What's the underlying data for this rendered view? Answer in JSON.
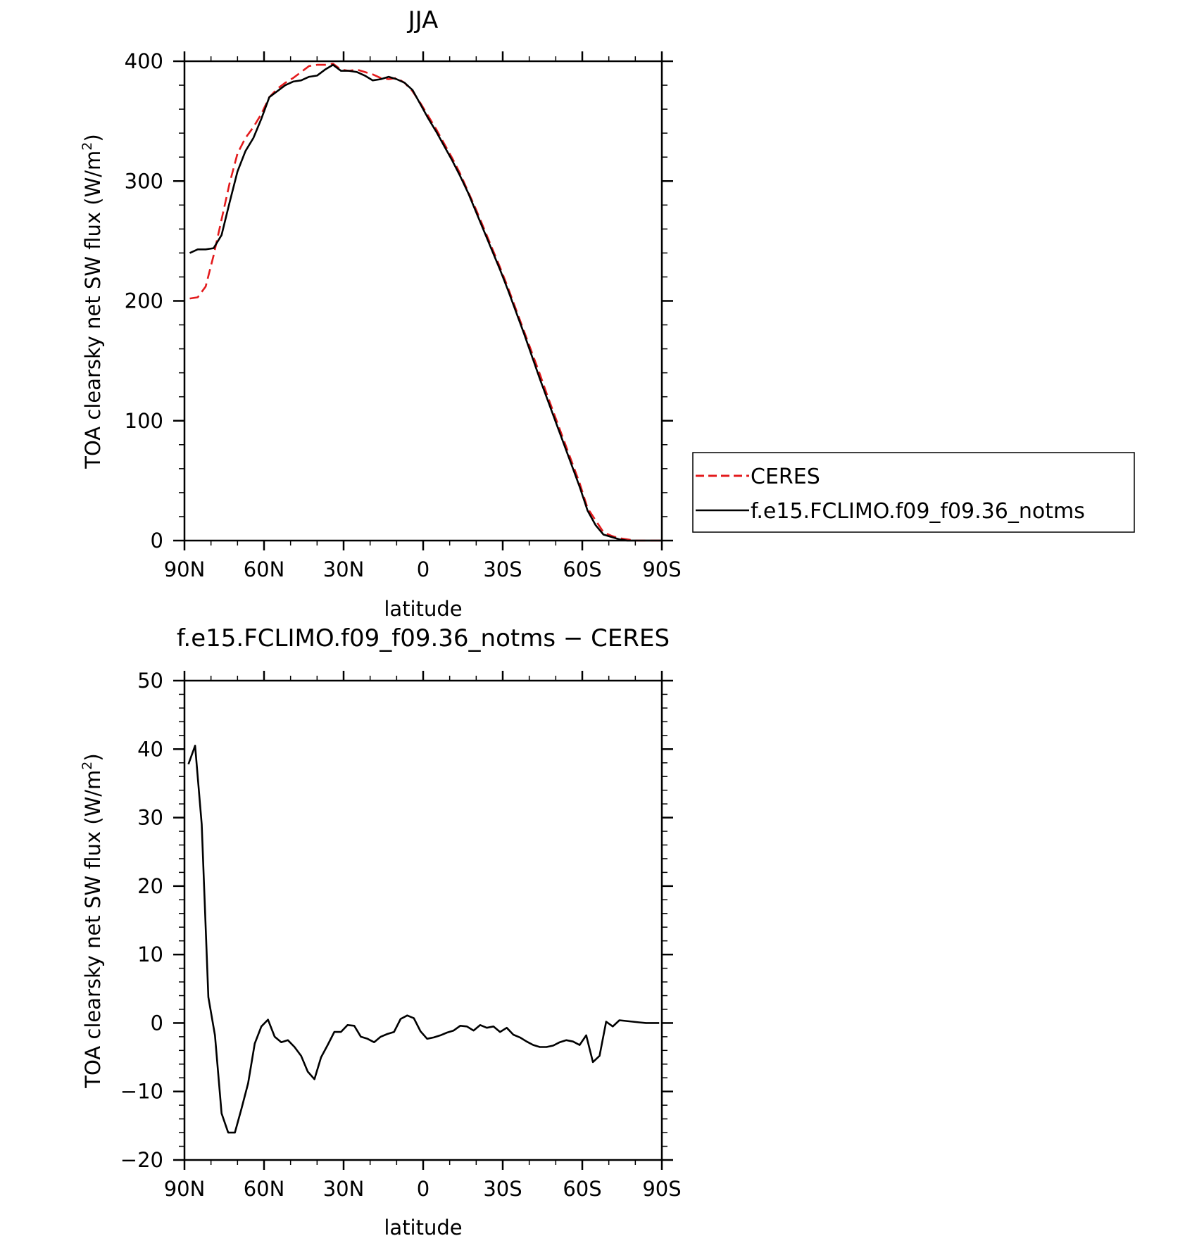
{
  "chart_data": [
    {
      "type": "line",
      "title": "JJA",
      "xlabel": "latitude",
      "ylabel": "TOA clearsky net SW flux (W/m",
      "ylabel_sup": "2",
      "ylabel_end": ")",
      "xlim": [
        90,
        -90
      ],
      "ylim": [
        0,
        400
      ],
      "x_ticks": [
        90,
        60,
        30,
        0,
        -30,
        -60,
        -90
      ],
      "x_tick_labels": [
        "90N",
        "60N",
        "30N",
        "0",
        "30S",
        "60S",
        "90S"
      ],
      "y_ticks": [
        0,
        100,
        200,
        300,
        400
      ],
      "y_tick_labels": [
        "0",
        "100",
        "200",
        "300",
        "400"
      ],
      "grid": false,
      "legend_position": "right",
      "series": [
        {
          "name": "CERES",
          "color": "#e31a1c",
          "dash": "dashed",
          "points": [
            [
              88,
              202
            ],
            [
              85,
              203
            ],
            [
              82,
              212
            ],
            [
              79,
              238
            ],
            [
              76,
              268
            ],
            [
              73,
              298
            ],
            [
              70,
              323
            ],
            [
              67,
              336
            ],
            [
              64,
              345
            ],
            [
              61,
              356
            ],
            [
              58,
              370
            ],
            [
              55,
              377
            ],
            [
              52,
              382
            ],
            [
              49,
              386
            ],
            [
              46,
              391
            ],
            [
              43,
              396
            ],
            [
              40,
              397
            ],
            [
              37,
              397
            ],
            [
              34,
              398
            ],
            [
              31,
              393
            ],
            [
              28,
              392
            ],
            [
              25,
              393
            ],
            [
              22,
              391
            ],
            [
              19,
              389
            ],
            [
              16,
              386
            ],
            [
              13,
              385
            ],
            [
              10,
              386
            ],
            [
              7,
              382
            ],
            [
              4,
              375
            ],
            [
              1,
              365
            ],
            [
              -2,
              354
            ],
            [
              -5,
              343
            ],
            [
              -8,
              331
            ],
            [
              -11,
              319
            ],
            [
              -14,
              306
            ],
            [
              -17,
              291
            ],
            [
              -20,
              276
            ],
            [
              -23,
              260
            ],
            [
              -26,
              244
            ],
            [
              -29,
              228
            ],
            [
              -32,
              211
            ],
            [
              -35,
              193
            ],
            [
              -38,
              175
            ],
            [
              -41,
              157
            ],
            [
              -44,
              139
            ],
            [
              -47,
              120
            ],
            [
              -50,
              102
            ],
            [
              -53,
              84
            ],
            [
              -56,
              66
            ],
            [
              -59,
              48
            ],
            [
              -62,
              27
            ],
            [
              -65,
              17
            ],
            [
              -68,
              7
            ],
            [
              -71,
              4
            ],
            [
              -74,
              2
            ],
            [
              -77,
              1
            ],
            [
              -80,
              0
            ],
            [
              -85,
              0
            ],
            [
              -90,
              0
            ]
          ]
        },
        {
          "name": "f.e15.FCLIMO.f09_f09.36_notms",
          "color": "#000000",
          "dash": "solid",
          "points": [
            [
              88,
              240
            ],
            [
              85,
              243
            ],
            [
              82,
              243
            ],
            [
              79,
              244
            ],
            [
              76,
              255
            ],
            [
              73,
              282
            ],
            [
              70,
              308
            ],
            [
              67,
              325
            ],
            [
              64,
              336
            ],
            [
              61,
              352
            ],
            [
              58,
              370
            ],
            [
              55,
              375
            ],
            [
              52,
              380
            ],
            [
              49,
              383
            ],
            [
              46,
              384
            ],
            [
              43,
              387
            ],
            [
              40,
              388
            ],
            [
              37,
              393
            ],
            [
              34,
              397
            ],
            [
              31,
              392
            ],
            [
              28,
              392
            ],
            [
              25,
              391
            ],
            [
              22,
              388
            ],
            [
              19,
              384
            ],
            [
              16,
              385
            ],
            [
              13,
              387
            ],
            [
              10,
              385
            ],
            [
              7,
              382
            ],
            [
              4,
              376
            ],
            [
              1,
              364
            ],
            [
              -2,
              352
            ],
            [
              -5,
              341
            ],
            [
              -8,
              329
            ],
            [
              -11,
              317
            ],
            [
              -14,
              304
            ],
            [
              -17,
              290
            ],
            [
              -20,
              274
            ],
            [
              -23,
              258
            ],
            [
              -26,
              242
            ],
            [
              -29,
              226
            ],
            [
              -32,
              209
            ],
            [
              -35,
              191
            ],
            [
              -38,
              173
            ],
            [
              -41,
              154
            ],
            [
              -44,
              135
            ],
            [
              -47,
              117
            ],
            [
              -50,
              99
            ],
            [
              -53,
              81
            ],
            [
              -56,
              63
            ],
            [
              -59,
              45
            ],
            [
              -62,
              25
            ],
            [
              -65,
              13
            ],
            [
              -68,
              5
            ],
            [
              -71,
              3
            ],
            [
              -74,
              1
            ],
            [
              -77,
              0
            ],
            [
              -80,
              0
            ],
            [
              -85,
              0
            ],
            [
              -90,
              0
            ]
          ]
        }
      ]
    },
    {
      "type": "line",
      "title": "f.e15.FCLIMO.f09_f09.36_notms − CERES",
      "xlabel": "latitude",
      "ylabel": "TOA clearsky net SW flux (W/m",
      "ylabel_sup": "2",
      "ylabel_end": ")",
      "xlim": [
        90,
        -90
      ],
      "ylim": [
        -20,
        50
      ],
      "x_ticks": [
        90,
        60,
        30,
        0,
        -30,
        -60,
        -90
      ],
      "x_tick_labels": [
        "90N",
        "60N",
        "30N",
        "0",
        "30S",
        "60S",
        "90S"
      ],
      "y_ticks": [
        -20,
        -10,
        0,
        10,
        20,
        30,
        40,
        50
      ],
      "y_tick_labels": [
        "−20",
        "−10",
        "0",
        "10",
        "20",
        "30",
        "40",
        "50"
      ],
      "grid": false,
      "series": [
        {
          "color": "#000000",
          "dash": "solid",
          "points": [
            [
              88.5,
              37.8
            ],
            [
              86,
              40.5
            ],
            [
              83.5,
              29
            ],
            [
              81,
              3.8
            ],
            [
              78.5,
              -1.8
            ],
            [
              76,
              -13.2
            ],
            [
              73.5,
              -16
            ],
            [
              71,
              -16
            ],
            [
              68.5,
              -12.5
            ],
            [
              66,
              -8.8
            ],
            [
              63.5,
              -3
            ],
            [
              61,
              -0.5
            ],
            [
              58.5,
              0.5
            ],
            [
              56,
              -2
            ],
            [
              53.5,
              -2.8
            ],
            [
              51,
              -2.5
            ],
            [
              48.5,
              -3.5
            ],
            [
              46,
              -4.8
            ],
            [
              43.5,
              -7.1
            ],
            [
              41,
              -8.2
            ],
            [
              38.5,
              -5
            ],
            [
              36,
              -3.2
            ],
            [
              33.5,
              -1.3
            ],
            [
              31,
              -1.3
            ],
            [
              28.5,
              -0.3
            ],
            [
              26,
              -0.4
            ],
            [
              23.5,
              -2
            ],
            [
              21,
              -2.3
            ],
            [
              18.5,
              -2.8
            ],
            [
              16,
              -2
            ],
            [
              13.5,
              -1.6
            ],
            [
              11,
              -1.3
            ],
            [
              8.5,
              0.6
            ],
            [
              6,
              1.1
            ],
            [
              3.5,
              0.7
            ],
            [
              1,
              -1.2
            ],
            [
              -1.5,
              -2.3
            ],
            [
              -4,
              -2.1
            ],
            [
              -6.5,
              -1.8
            ],
            [
              -9,
              -1.4
            ],
            [
              -11.5,
              -1.1
            ],
            [
              -14,
              -0.4
            ],
            [
              -16.5,
              -0.5
            ],
            [
              -19,
              -1.1
            ],
            [
              -21.5,
              -0.3
            ],
            [
              -24,
              -0.7
            ],
            [
              -26.5,
              -0.5
            ],
            [
              -29,
              -1.3
            ],
            [
              -31.5,
              -0.7
            ],
            [
              -34,
              -1.7
            ],
            [
              -36.5,
              -2.1
            ],
            [
              -39,
              -2.7
            ],
            [
              -41.5,
              -3.2
            ],
            [
              -44,
              -3.5
            ],
            [
              -46.5,
              -3.5
            ],
            [
              -49,
              -3.3
            ],
            [
              -51.5,
              -2.8
            ],
            [
              -54,
              -2.5
            ],
            [
              -56.5,
              -2.7
            ],
            [
              -59,
              -3.2
            ],
            [
              -61.5,
              -1.8
            ],
            [
              -64,
              -5.7
            ],
            [
              -66.5,
              -4.8
            ],
            [
              -69,
              0.2
            ],
            [
              -71.5,
              -0.5
            ],
            [
              -74,
              0.4
            ],
            [
              -76.5,
              0.3
            ],
            [
              -79,
              0.2
            ],
            [
              -81.5,
              0.1
            ],
            [
              -84,
              0
            ],
            [
              -86.5,
              0
            ],
            [
              -89,
              0
            ]
          ]
        }
      ]
    }
  ],
  "legend": {
    "items": [
      {
        "label": "CERES",
        "color": "#e31a1c",
        "dash": "dashed"
      },
      {
        "label": "f.e15.FCLIMO.f09_f09.36_notms",
        "color": "#000000",
        "dash": "solid"
      }
    ]
  }
}
